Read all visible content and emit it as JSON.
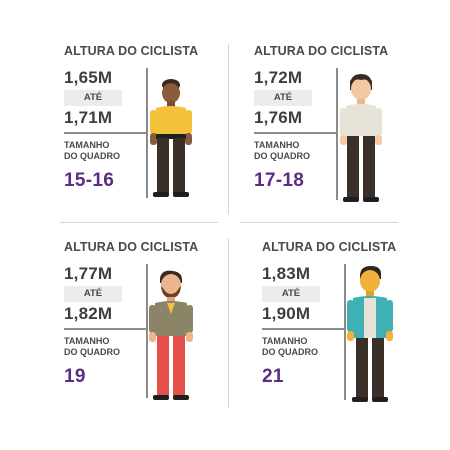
{
  "cards": [
    {
      "title": "ALTURA DO CICLISTA",
      "height_min": "1,65M",
      "sep": "ATÉ",
      "height_max": "1,71M",
      "frame_label_1": "TAMANHO",
      "frame_label_2": "DO QUADRO",
      "frame_size": "15-16",
      "figure": "short-person-yellow-shirt-icon"
    },
    {
      "title": "ALTURA DO CICLISTA",
      "height_min": "1,72M",
      "sep": "ATÉ",
      "height_max": "1,76M",
      "frame_label_1": "TAMANHO",
      "frame_label_2": "DO QUADRO",
      "frame_size": "17-18",
      "figure": "person-white-shirt-icon"
    },
    {
      "title": "ALTURA DO CICLISTA",
      "height_min": "1,77M",
      "sep": "ATÉ",
      "height_max": "1,82M",
      "frame_label_1": "TAMANHO",
      "frame_label_2": "DO QUADRO",
      "frame_size": "19",
      "figure": "bearded-person-olive-jacket-icon"
    },
    {
      "title": "ALTURA DO CICLISTA",
      "height_min": "1,83M",
      "sep": "ATÉ",
      "height_max": "1,90M",
      "frame_label_1": "TAMANHO",
      "frame_label_2": "DO QUADRO",
      "frame_size": "21",
      "figure": "tall-person-teal-jacket-icon"
    }
  ],
  "colors": {
    "accent_purple": "#5b2c83",
    "text_gray": "#4a4a4a",
    "line_gray": "#8b8b8b",
    "box_gray": "#ececec"
  }
}
